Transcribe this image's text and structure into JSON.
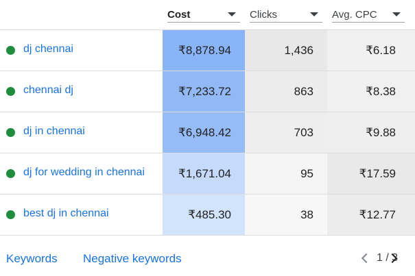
{
  "columns": {
    "cost": "Cost",
    "clicks": "Clicks",
    "avg_cpc": "Avg. CPC"
  },
  "rows": [
    {
      "keyword": "dj chennai",
      "status_color": "#1e8e3e",
      "cost": "₹8,878.94",
      "clicks": "1,436",
      "avg_cpc": "₹6.18",
      "cost_bg": "#8ab4f8",
      "clicks_bg": "#e8e8e8",
      "cpc_bg": "#f1f1f1"
    },
    {
      "keyword": "chennai dj",
      "status_color": "#1e8e3e",
      "cost": "₹7,233.72",
      "clicks": "863",
      "avg_cpc": "₹8.38",
      "cost_bg": "#92b9f6",
      "clicks_bg": "#ececec",
      "cpc_bg": "#f0f0f0"
    },
    {
      "keyword": "dj in chennai",
      "status_color": "#1e8e3e",
      "cost": "₹6,948.42",
      "clicks": "703",
      "avg_cpc": "₹9.88",
      "cost_bg": "#95bcf6",
      "clicks_bg": "#eeeeee",
      "cpc_bg": "#efefef"
    },
    {
      "keyword": "dj for wedding in chennai",
      "status_color": "#1e8e3e",
      "cost": "₹1,671.04",
      "clicks": "95",
      "avg_cpc": "₹17.59",
      "cost_bg": "#c6dafc",
      "clicks_bg": "#f5f5f5",
      "cpc_bg": "#e9e9e9"
    },
    {
      "keyword": "best dj in chennai",
      "status_color": "#1e8e3e",
      "cost": "₹485.30",
      "clicks": "38",
      "avg_cpc": "₹12.77",
      "cost_bg": "#d2e3fc",
      "clicks_bg": "#f7f7f7",
      "cpc_bg": "#ececec"
    }
  ],
  "footer": {
    "keywords_link": "Keywords",
    "negative_link": "Negative keywords",
    "page_indicator": "1 / 3"
  }
}
